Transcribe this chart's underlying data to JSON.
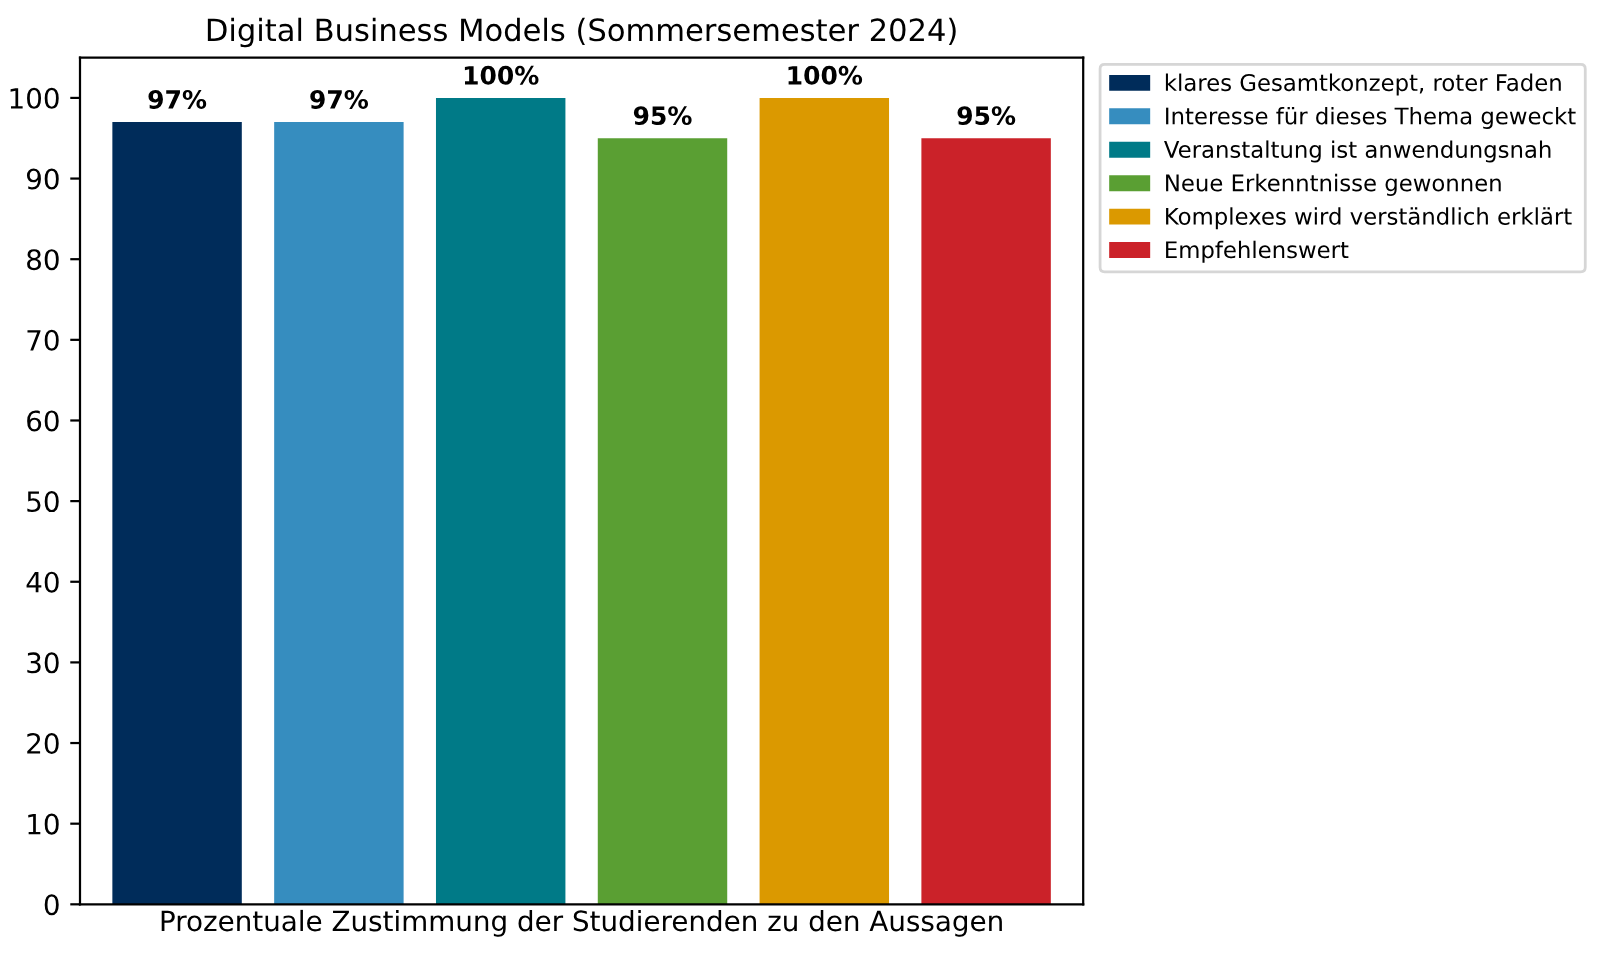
{
  "chart_data": {
    "type": "bar",
    "title": "Digital Business Models (Sommersemester 2024)",
    "xlabel": "Prozentuale Zustimmung der Studierenden zu den Aussagen",
    "categories": [
      null,
      null,
      null,
      null,
      null,
      null
    ],
    "series": [
      {
        "name": "klares Gesamtkonzept, roter Faden",
        "color": "#002c5a",
        "values": [
          97,
          null,
          null,
          null,
          null,
          null
        ],
        "value_labels": [
          "97%",
          null,
          null,
          null,
          null,
          null
        ]
      },
      {
        "name": "Interesse für dieses Thema geweckt",
        "color": "#368dbf",
        "values": [
          null,
          97,
          null,
          null,
          null,
          null
        ],
        "value_labels": [
          null,
          "97%",
          null,
          null,
          null,
          null
        ]
      },
      {
        "name": "Veranstaltung ist anwendungsnah",
        "color": "#007a87",
        "values": [
          null,
          null,
          100,
          null,
          null,
          null
        ],
        "value_labels": [
          null,
          null,
          "100%",
          null,
          null,
          null
        ]
      },
      {
        "name": "Neue Erkenntnisse gewonnen",
        "color": "#5a9f33",
        "values": [
          null,
          null,
          null,
          95,
          null,
          null
        ],
        "value_labels": [
          null,
          null,
          null,
          "95%",
          null,
          null
        ]
      },
      {
        "name": "Komplexes wird verständlich erklärt",
        "color": "#db9900",
        "values": [
          null,
          null,
          null,
          null,
          100,
          null
        ],
        "value_labels": [
          null,
          null,
          null,
          null,
          "100%",
          null
        ]
      },
      {
        "name": "Empfehlenswert",
        "color": "#cb2229",
        "values": [
          null,
          null,
          null,
          null,
          null,
          95
        ],
        "value_labels": [
          null,
          null,
          null,
          null,
          null,
          "95%"
        ]
      }
    ],
    "ylim": [
      0,
      105
    ],
    "yticks": [
      0,
      10,
      20,
      30,
      40,
      50,
      60,
      70,
      80,
      90,
      100
    ],
    "tick_labels": "y",
    "grid": false,
    "legend": "top right"
  }
}
